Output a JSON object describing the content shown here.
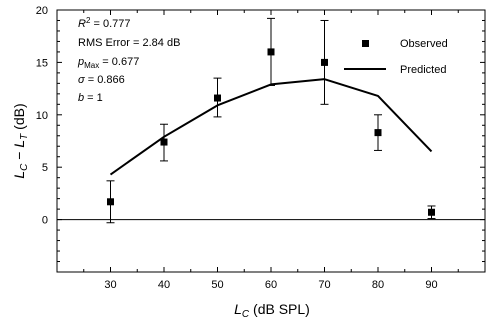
{
  "chart_data": {
    "type": "scatter",
    "x_axis": {
      "label_main": "L",
      "label_sub": "C",
      "label_unit": " (dB SPL)",
      "range": [
        20,
        100
      ],
      "ticks": [
        30,
        40,
        50,
        60,
        70,
        80,
        90
      ],
      "tick_labels": [
        "30",
        "40",
        "50",
        "60",
        "70",
        "80",
        "90"
      ]
    },
    "y_axis": {
      "label_a": "L",
      "label_a_sub": "C",
      "label_minus": " − ",
      "label_b": "L",
      "label_b_sub": "T",
      "label_unit": " (dB)",
      "range": [
        -5,
        20
      ],
      "ticks": [
        0,
        5,
        10,
        15,
        20
      ],
      "tick_labels": [
        "0",
        "5",
        "10",
        "15",
        "20"
      ]
    },
    "zero_line": true,
    "grid": false,
    "legend_position": "top-right",
    "series": [
      {
        "name": "Observed",
        "style": "square-marker",
        "x": [
          30,
          40,
          50,
          60,
          70,
          80,
          90
        ],
        "y": [
          1.7,
          7.4,
          11.6,
          16.0,
          15.0,
          8.3,
          0.7
        ],
        "err_low": [
          -0.3,
          5.6,
          9.8,
          12.8,
          11.0,
          6.6,
          0.1
        ],
        "err_high": [
          3.7,
          9.1,
          13.5,
          19.2,
          19.0,
          10.0,
          1.3
        ]
      },
      {
        "name": "Predicted",
        "style": "line",
        "x": [
          30,
          40,
          50,
          60,
          70,
          80,
          90
        ],
        "y": [
          4.3,
          7.9,
          10.9,
          12.9,
          13.4,
          11.8,
          6.5
        ]
      }
    ],
    "annotations": [
      {
        "name": "R",
        "sup": "2",
        "eq": " = ",
        "value": "0.777"
      },
      {
        "name": "RMS Error",
        "eq": " = ",
        "value": "2.84 dB"
      },
      {
        "name": "p",
        "sub": "Max",
        "eq": " = ",
        "value": "0.677"
      },
      {
        "name": "σ",
        "eq": " = ",
        "value": "0.866"
      },
      {
        "name": "b",
        "eq": " = ",
        "value": "1"
      }
    ]
  }
}
